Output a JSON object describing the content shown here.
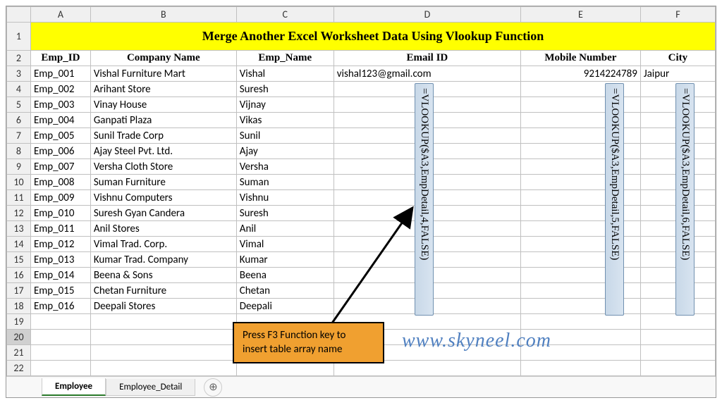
{
  "title": "Merge Another Excel Worksheet Data Using Vlookup Function",
  "columns": [
    "A",
    "B",
    "C",
    "D",
    "E",
    "F"
  ],
  "header": {
    "emp_id": "Emp_ID",
    "company": "Company Name",
    "emp_name": "Emp_Name",
    "email": "Email ID",
    "mobile": "Mobile Number",
    "city": "City"
  },
  "rows": [
    {
      "n": 3,
      "id": "Emp_001",
      "company": "Vishal Furniture Mart",
      "name": "Vishal",
      "email": "vishal123@gmail.com",
      "mobile": "9214224789",
      "city": "Jaipur"
    },
    {
      "n": 4,
      "id": "Emp_002",
      "company": "Arihant Store",
      "name": "Suresh",
      "email": "",
      "mobile": "",
      "city": ""
    },
    {
      "n": 5,
      "id": "Emp_003",
      "company": "Vinay House",
      "name": "Vijnay",
      "email": "",
      "mobile": "",
      "city": ""
    },
    {
      "n": 6,
      "id": "Emp_004",
      "company": "Ganpati Plaza",
      "name": "Vikas",
      "email": "",
      "mobile": "",
      "city": ""
    },
    {
      "n": 7,
      "id": "Emp_005",
      "company": "Sunil Trade Corp",
      "name": "Sunil",
      "email": "",
      "mobile": "",
      "city": ""
    },
    {
      "n": 8,
      "id": "Emp_006",
      "company": "Ajay Steel Pvt. Ltd.",
      "name": "Ajay",
      "email": "",
      "mobile": "",
      "city": ""
    },
    {
      "n": 9,
      "id": "Emp_007",
      "company": "Versha Cloth Store",
      "name": "Versha",
      "email": "",
      "mobile": "",
      "city": ""
    },
    {
      "n": 10,
      "id": "Emp_008",
      "company": "Suman Furniture",
      "name": "Suman",
      "email": "",
      "mobile": "",
      "city": ""
    },
    {
      "n": 11,
      "id": "Emp_009",
      "company": "Vishnu Computers",
      "name": "Vishnu",
      "email": "",
      "mobile": "",
      "city": ""
    },
    {
      "n": 12,
      "id": "Emp_010",
      "company": "Suresh Gyan Candera",
      "name": "Suresh",
      "email": "",
      "mobile": "",
      "city": ""
    },
    {
      "n": 13,
      "id": "Emp_011",
      "company": "Anil Stores",
      "name": "Anil",
      "email": "",
      "mobile": "",
      "city": ""
    },
    {
      "n": 14,
      "id": "Emp_012",
      "company": "Vimal Trad. Corp.",
      "name": "Vimal",
      "email": "",
      "mobile": "",
      "city": ""
    },
    {
      "n": 15,
      "id": "Emp_013",
      "company": "Kumar Trad. Company",
      "name": "Kumar",
      "email": "",
      "mobile": "",
      "city": ""
    },
    {
      "n": 16,
      "id": "Emp_014",
      "company": "Beena & Sons",
      "name": "Beena",
      "email": "",
      "mobile": "",
      "city": ""
    },
    {
      "n": 17,
      "id": "Emp_015",
      "company": "Chetan Furniture",
      "name": "Chetan",
      "email": "",
      "mobile": "",
      "city": ""
    },
    {
      "n": 18,
      "id": "Emp_016",
      "company": "Deepali Stores",
      "name": "Deepali",
      "email": "",
      "mobile": "",
      "city": ""
    }
  ],
  "blank_rows": [
    19,
    20,
    21,
    22
  ],
  "selected_row": 20,
  "formulas": {
    "d": "=VLOOKUP($A3,EmpDetail,4,FALSE)",
    "e": "=VLOOKUP($A3,EmpDetail,5,FALSE)",
    "f": "=VLOOKUP($A3,EmpDetail,6,FALSE)"
  },
  "callout": {
    "line1": "Press F3 Function key to",
    "line2": "insert table array name"
  },
  "watermark": "www.skyneel.com",
  "tabs": {
    "active": "Employee",
    "other": "Employee_Detail"
  },
  "colors": {
    "title_bg": "#ffff00",
    "formula_bg": "#c8d8e8",
    "callout_bg": "#f0a030",
    "watermark": "#5080c0"
  }
}
